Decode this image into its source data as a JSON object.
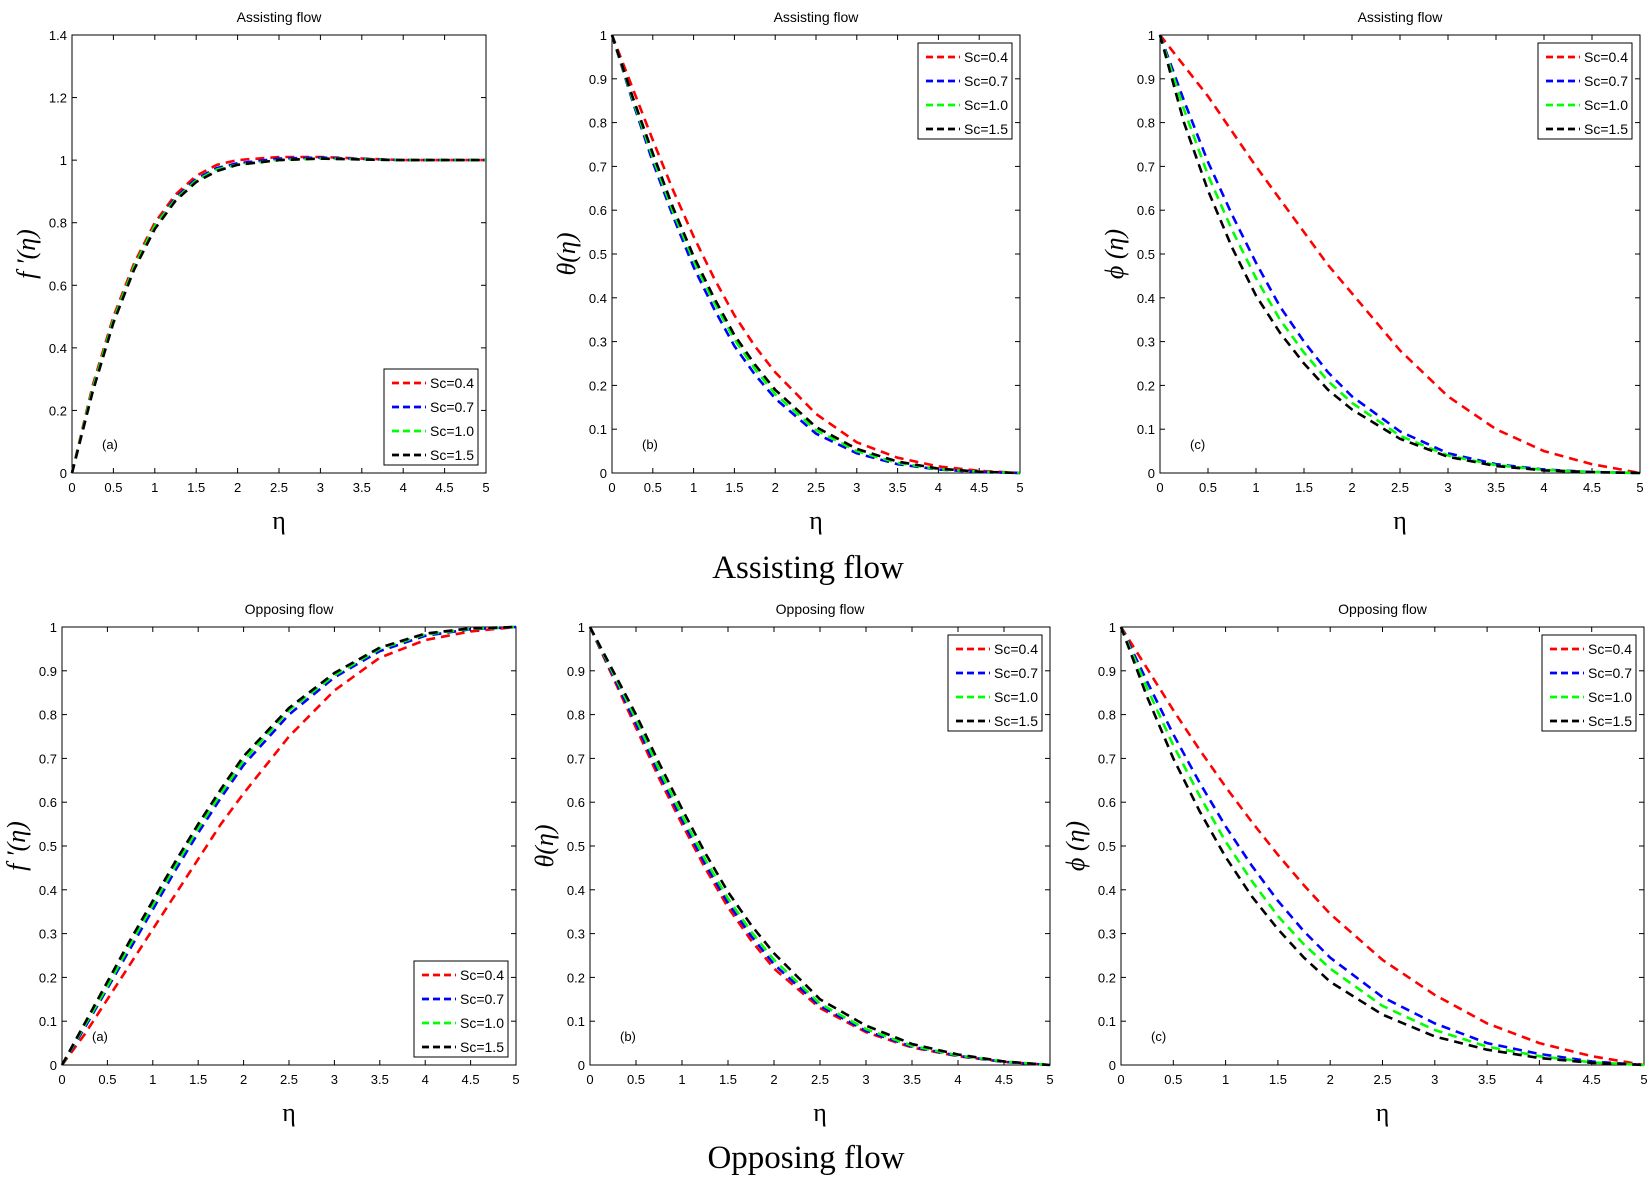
{
  "figure": {
    "row_captions": [
      "Assisting flow",
      "Opposing flow"
    ]
  },
  "colors": {
    "Sc=0.4": "#ff0000",
    "Sc=0.7": "#0000ff",
    "Sc=1.0": "#00ff00",
    "Sc=1.5": "#000000"
  },
  "chart_data": [
    {
      "type": "line",
      "panel": "(a)",
      "title": "Assisting flow",
      "xlabel": "η",
      "ylabel": "f ′(η)",
      "xlim": [
        0,
        5
      ],
      "ylim": [
        0,
        1.4
      ],
      "xticks": [
        "0",
        "0.5",
        "1",
        "1.5",
        "2",
        "2.5",
        "3",
        "3.5",
        "4",
        "4.5",
        "5"
      ],
      "yticks": [
        "0",
        "0.2",
        "0.4",
        "0.6",
        "0.8",
        "1",
        "1.2",
        "1.4"
      ],
      "legend_position": "bottom-right",
      "x": [
        0,
        0.25,
        0.5,
        0.75,
        1,
        1.25,
        1.5,
        1.75,
        2,
        2.5,
        3,
        3.5,
        4,
        4.5,
        5
      ],
      "series": [
        {
          "name": "Sc=0.4",
          "values": [
            0,
            0.28,
            0.5,
            0.67,
            0.8,
            0.89,
            0.95,
            0.985,
            1.0,
            1.01,
            1.01,
            1.005,
            1.0,
            1.0,
            1.0
          ]
        },
        {
          "name": "Sc=0.7",
          "values": [
            0,
            0.27,
            0.49,
            0.66,
            0.79,
            0.88,
            0.94,
            0.975,
            0.99,
            1.005,
            1.008,
            1.004,
            1.0,
            1.0,
            1.0
          ]
        },
        {
          "name": "Sc=1.0",
          "values": [
            0,
            0.27,
            0.49,
            0.66,
            0.79,
            0.875,
            0.935,
            0.97,
            0.985,
            1.0,
            1.005,
            1.003,
            1.0,
            1.0,
            1.0
          ]
        },
        {
          "name": "Sc=1.5",
          "values": [
            0,
            0.26,
            0.48,
            0.65,
            0.78,
            0.87,
            0.93,
            0.965,
            0.985,
            1.0,
            1.005,
            1.002,
            1.0,
            1.0,
            1.0
          ]
        }
      ]
    },
    {
      "type": "line",
      "panel": "(b)",
      "title": "Assisting flow",
      "xlabel": "η",
      "ylabel": "θ(η)",
      "xlim": [
        0,
        5
      ],
      "ylim": [
        0,
        1
      ],
      "xticks": [
        "0",
        "0.5",
        "1",
        "1.5",
        "2",
        "2.5",
        "3",
        "3.5",
        "4",
        "4.5",
        "5"
      ],
      "yticks": [
        "0",
        "0.1",
        "0.2",
        "0.3",
        "0.4",
        "0.5",
        "0.6",
        "0.7",
        "0.8",
        "0.9",
        "1"
      ],
      "legend_position": "top-right",
      "x": [
        0,
        0.25,
        0.5,
        0.75,
        1,
        1.25,
        1.5,
        1.75,
        2,
        2.5,
        3,
        3.5,
        4,
        4.5,
        5
      ],
      "series": [
        {
          "name": "Sc=0.4",
          "values": [
            1,
            0.88,
            0.76,
            0.645,
            0.54,
            0.445,
            0.36,
            0.29,
            0.23,
            0.135,
            0.07,
            0.035,
            0.015,
            0.005,
            0
          ]
        },
        {
          "name": "Sc=0.7",
          "values": [
            1,
            0.85,
            0.71,
            0.585,
            0.47,
            0.375,
            0.29,
            0.225,
            0.17,
            0.09,
            0.045,
            0.02,
            0.008,
            0.002,
            0
          ]
        },
        {
          "name": "Sc=1.0",
          "values": [
            1,
            0.855,
            0.72,
            0.595,
            0.485,
            0.39,
            0.305,
            0.238,
            0.18,
            0.098,
            0.05,
            0.023,
            0.009,
            0.003,
            0
          ]
        },
        {
          "name": "Sc=1.5",
          "values": [
            1,
            0.86,
            0.73,
            0.605,
            0.495,
            0.4,
            0.315,
            0.248,
            0.19,
            0.105,
            0.055,
            0.026,
            0.01,
            0.003,
            0
          ]
        }
      ]
    },
    {
      "type": "line",
      "panel": "(c)",
      "title": "Assisting flow",
      "xlabel": "η",
      "ylabel": "ϕ (η)",
      "xlim": [
        0,
        5
      ],
      "ylim": [
        0,
        1
      ],
      "xticks": [
        "0",
        "0.5",
        "1",
        "1.5",
        "2",
        "2.5",
        "3",
        "3.5",
        "4",
        "4.5",
        "5"
      ],
      "yticks": [
        "0",
        "0.1",
        "0.2",
        "0.3",
        "0.4",
        "0.5",
        "0.6",
        "0.7",
        "0.8",
        "0.9",
        "1"
      ],
      "legend_position": "top-right",
      "x": [
        0,
        0.25,
        0.5,
        0.75,
        1,
        1.25,
        1.5,
        1.75,
        2,
        2.5,
        3,
        3.5,
        4,
        4.5,
        5
      ],
      "series": [
        {
          "name": "Sc=0.4",
          "values": [
            1,
            0.93,
            0.86,
            0.78,
            0.7,
            0.625,
            0.55,
            0.475,
            0.41,
            0.28,
            0.175,
            0.1,
            0.05,
            0.02,
            0
          ]
        },
        {
          "name": "Sc=0.7",
          "values": [
            1,
            0.85,
            0.71,
            0.59,
            0.48,
            0.38,
            0.3,
            0.23,
            0.175,
            0.095,
            0.045,
            0.02,
            0.008,
            0.002,
            0
          ]
        },
        {
          "name": "Sc=1.0",
          "values": [
            1,
            0.83,
            0.68,
            0.555,
            0.445,
            0.35,
            0.275,
            0.21,
            0.16,
            0.085,
            0.04,
            0.018,
            0.007,
            0.002,
            0
          ]
        },
        {
          "name": "Sc=1.5",
          "values": [
            1,
            0.8,
            0.645,
            0.515,
            0.405,
            0.32,
            0.25,
            0.19,
            0.145,
            0.078,
            0.037,
            0.016,
            0.006,
            0.002,
            0
          ]
        }
      ]
    },
    {
      "type": "line",
      "panel": "(a)",
      "title": "Opposing flow",
      "xlabel": "η",
      "ylabel": "f ′(η)",
      "xlim": [
        0,
        5
      ],
      "ylim": [
        0,
        1
      ],
      "xticks": [
        "0",
        "0.5",
        "1",
        "1.5",
        "2",
        "2.5",
        "3",
        "3.5",
        "4",
        "4.5",
        "5"
      ],
      "yticks": [
        "0",
        "0.1",
        "0.2",
        "0.3",
        "0.4",
        "0.5",
        "0.6",
        "0.7",
        "0.8",
        "0.9",
        "1"
      ],
      "legend_position": "bottom-right",
      "x": [
        0,
        0.25,
        0.5,
        0.75,
        1,
        1.25,
        1.5,
        1.75,
        2,
        2.5,
        3,
        3.5,
        4,
        4.5,
        5
      ],
      "series": [
        {
          "name": "Sc=0.4",
          "values": [
            0,
            0.07,
            0.15,
            0.23,
            0.31,
            0.39,
            0.47,
            0.55,
            0.62,
            0.75,
            0.855,
            0.93,
            0.97,
            0.99,
            1.0
          ]
        },
        {
          "name": "Sc=0.7",
          "values": [
            0,
            0.085,
            0.175,
            0.265,
            0.355,
            0.445,
            0.53,
            0.61,
            0.685,
            0.8,
            0.885,
            0.945,
            0.98,
            0.995,
            1.0
          ]
        },
        {
          "name": "Sc=1.0",
          "values": [
            0,
            0.09,
            0.18,
            0.275,
            0.365,
            0.455,
            0.54,
            0.62,
            0.695,
            0.81,
            0.89,
            0.95,
            0.983,
            0.996,
            1.0
          ]
        },
        {
          "name": "Sc=1.5",
          "values": [
            0,
            0.095,
            0.19,
            0.285,
            0.375,
            0.465,
            0.55,
            0.63,
            0.705,
            0.815,
            0.895,
            0.953,
            0.985,
            0.997,
            1.0
          ]
        }
      ]
    },
    {
      "type": "line",
      "panel": "(b)",
      "title": "Opposing flow",
      "xlabel": "η",
      "ylabel": "θ(η)",
      "xlim": [
        0,
        5
      ],
      "ylim": [
        0,
        1
      ],
      "xticks": [
        "0",
        "0.5",
        "1",
        "1.5",
        "2",
        "2.5",
        "3",
        "3.5",
        "4",
        "4.5",
        "5"
      ],
      "yticks": [
        "0",
        "0.1",
        "0.2",
        "0.3",
        "0.4",
        "0.5",
        "0.6",
        "0.7",
        "0.8",
        "0.9",
        "1"
      ],
      "legend_position": "top-right",
      "x": [
        0,
        0.25,
        0.5,
        0.75,
        1,
        1.25,
        1.5,
        1.75,
        2,
        2.5,
        3,
        3.5,
        4,
        4.5,
        5
      ],
      "series": [
        {
          "name": "Sc=0.4",
          "values": [
            1,
            0.885,
            0.77,
            0.655,
            0.55,
            0.45,
            0.36,
            0.285,
            0.22,
            0.13,
            0.075,
            0.04,
            0.02,
            0.007,
            0
          ]
        },
        {
          "name": "Sc=0.7",
          "values": [
            1,
            0.89,
            0.78,
            0.665,
            0.56,
            0.46,
            0.37,
            0.295,
            0.23,
            0.135,
            0.078,
            0.042,
            0.021,
            0.007,
            0
          ]
        },
        {
          "name": "Sc=1.0",
          "values": [
            1,
            0.895,
            0.79,
            0.675,
            0.57,
            0.47,
            0.38,
            0.305,
            0.24,
            0.14,
            0.082,
            0.044,
            0.022,
            0.008,
            0
          ]
        },
        {
          "name": "Sc=1.5",
          "values": [
            1,
            0.9,
            0.8,
            0.69,
            0.585,
            0.485,
            0.395,
            0.32,
            0.255,
            0.15,
            0.09,
            0.048,
            0.024,
            0.008,
            0
          ]
        }
      ]
    },
    {
      "type": "line",
      "panel": "(c)",
      "title": "Opposing flow",
      "xlabel": "η",
      "ylabel": "ϕ (η)",
      "xlim": [
        0,
        5
      ],
      "ylim": [
        0,
        1
      ],
      "xticks": [
        "0",
        "0.5",
        "1",
        "1.5",
        "2",
        "2.5",
        "3",
        "3.5",
        "4",
        "4.5",
        "5"
      ],
      "yticks": [
        "0",
        "0.1",
        "0.2",
        "0.3",
        "0.4",
        "0.5",
        "0.6",
        "0.7",
        "0.8",
        "0.9",
        "1"
      ],
      "legend_position": "top-right",
      "x": [
        0,
        0.25,
        0.5,
        0.75,
        1,
        1.25,
        1.5,
        1.75,
        2,
        2.5,
        3,
        3.5,
        4,
        4.5,
        5
      ],
      "series": [
        {
          "name": "Sc=0.4",
          "values": [
            1,
            0.905,
            0.81,
            0.72,
            0.635,
            0.555,
            0.48,
            0.41,
            0.345,
            0.24,
            0.16,
            0.095,
            0.05,
            0.02,
            0
          ]
        },
        {
          "name": "Sc=0.7",
          "values": [
            1,
            0.875,
            0.755,
            0.645,
            0.545,
            0.455,
            0.375,
            0.305,
            0.245,
            0.155,
            0.095,
            0.05,
            0.025,
            0.008,
            0
          ]
        },
        {
          "name": "Sc=1.0",
          "values": [
            1,
            0.86,
            0.73,
            0.615,
            0.51,
            0.42,
            0.34,
            0.275,
            0.22,
            0.135,
            0.08,
            0.042,
            0.02,
            0.006,
            0
          ]
        },
        {
          "name": "Sc=1.5",
          "values": [
            1,
            0.84,
            0.7,
            0.58,
            0.475,
            0.385,
            0.31,
            0.245,
            0.19,
            0.115,
            0.065,
            0.035,
            0.016,
            0.005,
            0
          ]
        }
      ]
    }
  ]
}
